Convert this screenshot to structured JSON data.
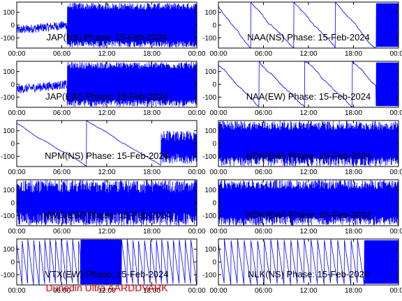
{
  "figure": {
    "footer": "Dunedin Ultra AARDDVARK",
    "footer_color": "#cc0000",
    "trace_color": "#0000ff"
  },
  "chart_data": [
    {
      "type": "line",
      "title": "JAP(NS) Phase: 15-Feb-2024",
      "xticks": [
        "00:00",
        "06:00",
        "12:00",
        "18:00",
        "00:00"
      ],
      "yticks": [
        "100",
        "0",
        "-100"
      ],
      "xlim": [
        0,
        24
      ],
      "ylim": [
        -180,
        180
      ],
      "pattern": "noise_then_dense",
      "dense_start": 6.7
    },
    {
      "type": "line",
      "title": "NAA(NS) Phase: 15-Feb-2024",
      "xticks": [
        "00:00",
        "06:00",
        "12:00",
        "18:00",
        "00:00"
      ],
      "yticks": [
        "100",
        "0",
        "-100"
      ],
      "xlim": [
        0,
        24
      ],
      "ylim": [
        -180,
        180
      ],
      "pattern": "drift_wraps"
    },
    {
      "type": "line",
      "title": "JAP(EW) Phase: 15-Feb-2024",
      "xticks": [
        "00:00",
        "06:00",
        "12:00",
        "18:00",
        "00:00"
      ],
      "yticks": [
        "100",
        "0",
        "-100"
      ],
      "xlim": [
        0,
        24
      ],
      "ylim": [
        -180,
        180
      ],
      "pattern": "noise_then_dense",
      "dense_start": 6.7
    },
    {
      "type": "line",
      "title": "NAA(EW) Phase: 15-Feb-2024",
      "xticks": [
        "00:00",
        "06:00",
        "12:00",
        "18:00",
        "00:00"
      ],
      "yticks": [
        "100",
        "0",
        "-100"
      ],
      "xlim": [
        0,
        24
      ],
      "ylim": [
        -180,
        180
      ],
      "pattern": "drift_wraps"
    },
    {
      "type": "line",
      "title": "NPM(NS) Phase: 15-Feb-2024",
      "xticks": [
        "00:00",
        "06:00",
        "12:00",
        "18:00",
        "00:00"
      ],
      "yticks": [
        "100",
        "0",
        "-100"
      ],
      "xlim": [
        0,
        24
      ],
      "ylim": [
        -180,
        180
      ],
      "pattern": "slow_ramps"
    },
    {
      "type": "line",
      "title": "NDK(EW) Phase: 15-Feb-2024",
      "xticks": [
        "00:00",
        "06:00",
        "12:00",
        "18:00",
        "00:00"
      ],
      "yticks": [
        "100",
        "0",
        "-100"
      ],
      "xlim": [
        0,
        24
      ],
      "ylim": [
        -180,
        180
      ],
      "pattern": "dense"
    },
    {
      "type": "line",
      "title": "NWC(EW) Phase: 15-Feb-2024",
      "xticks": [
        "00:00",
        "06:00",
        "12:00",
        "18:00",
        "00:00"
      ],
      "yticks": [
        "100",
        "0",
        "-100"
      ],
      "xlim": [
        0,
        24
      ],
      "ylim": [
        -180,
        180
      ],
      "pattern": "dense_gaps"
    },
    {
      "type": "line",
      "title": "NDK(EW) Phase: 15-Feb-2024",
      "xticks": [
        "00:00",
        "06:00",
        "12:00",
        "18:00",
        "00:00"
      ],
      "yticks": [
        "100",
        "0",
        "-100"
      ],
      "xlim": [
        0,
        24
      ],
      "ylim": [
        -180,
        180
      ],
      "pattern": "dense"
    },
    {
      "type": "line",
      "title": "VTX(EW) Phase: 15-Feb-2024",
      "xticks": [
        "00:00",
        "06:00",
        "12:00",
        "18:00",
        "00:00"
      ],
      "yticks": [
        "100",
        "0",
        "-100"
      ],
      "xlim": [
        0,
        24
      ],
      "ylim": [
        -180,
        180
      ],
      "pattern": "fast_wraps_dense"
    },
    {
      "type": "line",
      "title": "NLK(NS) Phase: 15-Feb-2024",
      "xticks": [
        "00:00",
        "06:00",
        "12:00",
        "18:00",
        "00:00"
      ],
      "yticks": [
        "100",
        "0",
        "-100"
      ],
      "xlim": [
        0,
        24
      ],
      "ylim": [
        -180,
        180
      ],
      "pattern": "fast_wraps"
    }
  ]
}
